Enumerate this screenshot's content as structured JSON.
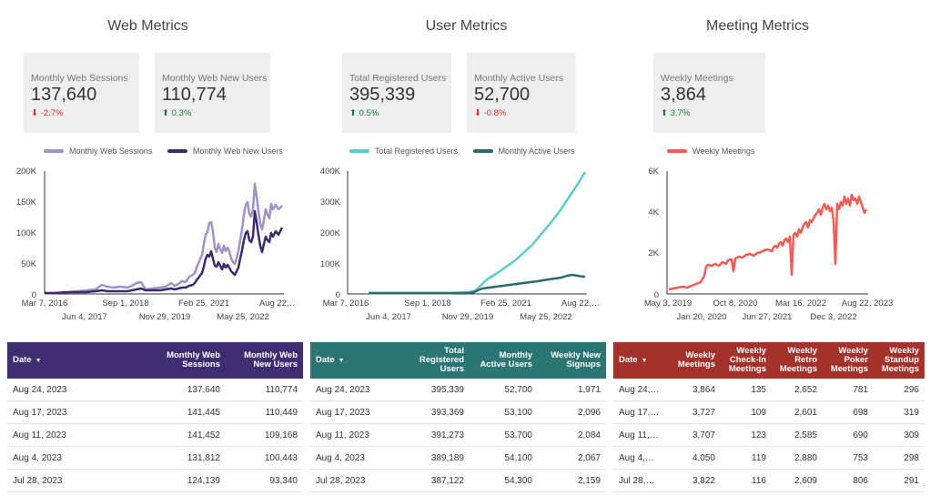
{
  "colors": {
    "web_sessions": "#a292c4",
    "web_new_users": "#3d2a6b",
    "registered": "#5ccbcb",
    "active": "#2a6b6e",
    "meetings": "#f25c54",
    "web_header": "#3f2d72",
    "user_header": "#2b7573",
    "meeting_header": "#a3322b",
    "delta_down": "#d93025",
    "delta_up": "#188038"
  },
  "web": {
    "title": "Web Metrics",
    "scorecards": [
      {
        "label": "Monthly Web Sessions",
        "value": "137,640",
        "delta": "-2.7%",
        "direction": "down"
      },
      {
        "label": "Monthly Web New Users",
        "value": "110,774",
        "delta": "0.3%",
        "direction": "up"
      }
    ],
    "legend": [
      "Monthly Web Sessions",
      "Monthly Web New Users"
    ],
    "chart": {
      "y_ticks": [
        "200K",
        "150K",
        "100K",
        "50K",
        "0"
      ],
      "x_ticks_top": [
        "Mar 7, 2016",
        "Sep 1, 2018",
        "Feb 25, 2021",
        "Aug 22,…"
      ],
      "x_ticks_bottom": [
        "Jun 4, 2017",
        "Nov 29, 2019",
        "May 25, 2022"
      ]
    },
    "table": {
      "headers": [
        "Date",
        "Monthly Web Sessions",
        "Monthly Web New Users"
      ],
      "rows": [
        [
          "Aug 24, 2023",
          "137,640",
          "110,774"
        ],
        [
          "Aug 17, 2023",
          "141,445",
          "110,449"
        ],
        [
          "Aug 11, 2023",
          "141,452",
          "109,168"
        ],
        [
          "Aug 4, 2023",
          "131,812",
          "100,443"
        ],
        [
          "Jul 28, 2023",
          "124,139",
          "93,340"
        ]
      ]
    }
  },
  "user": {
    "title": "User Metrics",
    "scorecards": [
      {
        "label": "Total Registered Users",
        "value": "395,339",
        "delta": "0.5%",
        "direction": "up"
      },
      {
        "label": "Monthly Active Users",
        "value": "52,700",
        "delta": "-0.8%",
        "direction": "down"
      }
    ],
    "legend": [
      "Total Registered Users",
      "Monthly Active Users"
    ],
    "chart": {
      "y_ticks": [
        "400K",
        "300K",
        "200K",
        "100K",
        "0"
      ],
      "x_ticks_top": [
        "Mar 7, 2016",
        "Sep 1, 2018",
        "Feb 25, 2021",
        "Aug 22,…"
      ],
      "x_ticks_bottom": [
        "Jun 4, 2017",
        "Nov 29, 2019",
        "May 25, 2022"
      ]
    },
    "table": {
      "headers": [
        "Date",
        "Total Registered Users",
        "Monthly Active Users",
        "Weekly New Signups"
      ],
      "rows": [
        [
          "Aug 24, 2023",
          "395,339",
          "52,700",
          "1,971"
        ],
        [
          "Aug 17, 2023",
          "393,369",
          "53,100",
          "2,096"
        ],
        [
          "Aug 11, 2023",
          "391,273",
          "53,700",
          "2,084"
        ],
        [
          "Aug 4, 2023",
          "389,189",
          "54,100",
          "2,067"
        ],
        [
          "Jul 28, 2023",
          "387,122",
          "54,300",
          "2,159"
        ]
      ]
    }
  },
  "meeting": {
    "title": "Meeting Metrics",
    "scorecards": [
      {
        "label": "Weekly Meetings",
        "value": "3,864",
        "delta": "3.7%",
        "direction": "up"
      }
    ],
    "legend": [
      "Weekly Meetings"
    ],
    "chart": {
      "y_ticks": [
        "6K",
        "4K",
        "2K",
        "0"
      ],
      "x_ticks_top": [
        "May 3, 2019",
        "Oct 8, 2020",
        "Mar 16, 2022",
        "Aug 22, 2023"
      ],
      "x_ticks_bottom": [
        "Jan 20, 2020",
        "Jun 27, 2021",
        "Dec 3, 2022"
      ]
    },
    "table": {
      "headers": [
        "Date",
        "Weekly Meetings",
        "Weekly Check-In Meetings",
        "Weekly Retro Meetings",
        "Weekly Poker Meetings",
        "Weekly Standup Meetings"
      ],
      "rows": [
        [
          "Aug 24,…",
          "3,864",
          "135",
          "2,652",
          "781",
          "296"
        ],
        [
          "Aug 17,…",
          "3,727",
          "109",
          "2,601",
          "698",
          "319"
        ],
        [
          "Aug 11,…",
          "3,707",
          "123",
          "2,585",
          "690",
          "309"
        ],
        [
          "Aug 4,…",
          "4,050",
          "119",
          "2,880",
          "753",
          "298"
        ],
        [
          "Jul 28,…",
          "3,822",
          "116",
          "2,609",
          "806",
          "291"
        ]
      ]
    }
  }
}
